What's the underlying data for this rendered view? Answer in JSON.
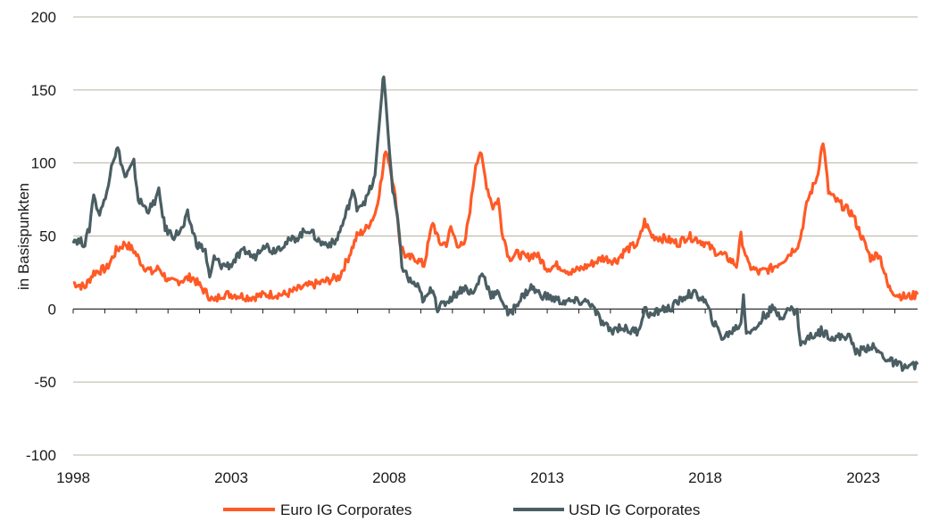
{
  "chart_data": {
    "type": "line",
    "title": "",
    "xlabel": "",
    "ylabel": "in Basispunkten",
    "xlim": [
      1998,
      2024.72
    ],
    "ylim": [
      -100,
      200
    ],
    "yticks": [
      -100,
      -50,
      0,
      50,
      100,
      150,
      200
    ],
    "ytick_labels": [
      "-100",
      "-50",
      "0",
      "50",
      "100",
      "150",
      "200"
    ],
    "xticks": [
      1998,
      2003,
      2008,
      2013,
      2018,
      2023
    ],
    "xtick_labels": [
      "1998",
      "2003",
      "2008",
      "2013",
      "2018",
      "2023"
    ],
    "grid": true,
    "legend_position": "bottom-center",
    "series": [
      {
        "name": "Euro IG Corporates",
        "color": "#ff5a26",
        "x": [
          1998.0,
          1998.37,
          1998.65,
          1999.07,
          1999.36,
          1999.64,
          1999.92,
          2000.2,
          2000.49,
          2000.71,
          2001.05,
          2001.47,
          2001.76,
          2002.04,
          2002.46,
          2002.69,
          2003.03,
          2003.59,
          2004.16,
          2004.72,
          2005.29,
          2005.85,
          2006.42,
          2006.7,
          2006.98,
          2007.27,
          2007.55,
          2007.77,
          2007.89,
          2008.06,
          2008.23,
          2008.34,
          2008.54,
          2008.82,
          2009.1,
          2009.38,
          2009.58,
          2009.81,
          2009.95,
          2010.15,
          2010.37,
          2010.6,
          2010.74,
          2010.88,
          2011.08,
          2011.28,
          2011.45,
          2011.56,
          2011.79,
          2012.07,
          2012.35,
          2012.63,
          2013.0,
          2013.34,
          2013.76,
          2014.33,
          2014.75,
          2015.18,
          2015.46,
          2015.88,
          2016.08,
          2016.31,
          2016.73,
          2017.15,
          2017.44,
          2017.72,
          2018.0,
          2018.28,
          2018.71,
          2018.99,
          2019.13,
          2019.36,
          2019.69,
          2020.12,
          2020.54,
          2020.97,
          2021.25,
          2021.53,
          2021.73,
          2021.9,
          2022.1,
          2022.38,
          2022.66,
          2022.94,
          2023.23,
          2023.51,
          2023.79,
          2024.07,
          2024.36,
          2024.72
        ],
        "y": [
          18,
          15,
          25,
          28,
          40,
          45,
          40,
          30,
          25,
          28,
          18,
          20,
          22,
          15,
          5,
          10,
          10,
          8,
          10,
          10,
          15,
          18,
          22,
          35,
          50,
          55,
          65,
          90,
          110,
          95,
          70,
          45,
          35,
          35,
          30,
          60,
          45,
          45,
          55,
          45,
          42,
          75,
          100,
          108,
          85,
          70,
          75,
          55,
          35,
          38,
          35,
          38,
          28,
          30,
          25,
          30,
          35,
          33,
          40,
          45,
          60,
          50,
          48,
          45,
          50,
          48,
          45,
          40,
          35,
          30,
          50,
          30,
          25,
          28,
          35,
          45,
          75,
          90,
          115,
          80,
          75,
          70,
          65,
          50,
          35,
          38,
          15,
          10,
          8,
          10
        ]
      },
      {
        "name": "USD IG Corporates",
        "color": "#4a5e63",
        "x": [
          1998.0,
          1998.37,
          1998.51,
          1998.65,
          1998.79,
          1999.02,
          1999.21,
          1999.41,
          1999.64,
          1999.92,
          2000.06,
          2000.34,
          2000.49,
          2000.71,
          2000.91,
          2001.19,
          2001.47,
          2001.62,
          2001.9,
          2002.18,
          2002.32,
          2002.46,
          2002.69,
          2002.97,
          2003.17,
          2003.45,
          2003.73,
          2004.02,
          2004.3,
          2004.72,
          2005.15,
          2005.43,
          2005.85,
          2006.28,
          2006.56,
          2006.84,
          2006.98,
          2007.27,
          2007.55,
          2007.77,
          2007.83,
          2007.97,
          2008.11,
          2008.25,
          2008.4,
          2008.62,
          2008.9,
          2009.1,
          2009.38,
          2009.53,
          2009.81,
          2010.09,
          2010.37,
          2010.66,
          2010.94,
          2011.22,
          2011.5,
          2011.79,
          2012.07,
          2012.49,
          2012.77,
          2013.06,
          2013.48,
          2013.9,
          2014.33,
          2014.75,
          2015.03,
          2015.32,
          2015.6,
          2015.88,
          2016.08,
          2016.31,
          2016.59,
          2016.87,
          2017.15,
          2017.44,
          2017.72,
          2018.0,
          2018.28,
          2018.56,
          2018.85,
          2019.13,
          2019.21,
          2019.3,
          2019.55,
          2019.84,
          2020.12,
          2020.4,
          2020.68,
          2020.91,
          2021.02,
          2021.25,
          2021.67,
          2022.1,
          2022.52,
          2022.8,
          2023.23,
          2023.51,
          2023.79,
          2024.07,
          2024.36,
          2024.72
        ],
        "y": [
          48,
          45,
          55,
          80,
          65,
          75,
          100,
          110,
          90,
          100,
          75,
          68,
          70,
          80,
          55,
          50,
          55,
          65,
          45,
          40,
          20,
          35,
          30,
          30,
          35,
          40,
          35,
          45,
          40,
          45,
          50,
          55,
          45,
          45,
          60,
          80,
          70,
          75,
          90,
          150,
          160,
          120,
          80,
          65,
          30,
          20,
          15,
          5,
          15,
          0,
          5,
          10,
          15,
          10,
          25,
          10,
          10,
          -5,
          5,
          15,
          10,
          8,
          5,
          5,
          5,
          -10,
          -15,
          -12,
          -15,
          -15,
          0,
          -5,
          0,
          0,
          5,
          10,
          10,
          5,
          -10,
          -20,
          -15,
          -10,
          10,
          -15,
          -15,
          -5,
          0,
          -5,
          0,
          -2,
          -25,
          -20,
          -15,
          -20,
          -18,
          -30,
          -25,
          -30,
          -35,
          -38,
          -40,
          -38
        ]
      }
    ]
  }
}
